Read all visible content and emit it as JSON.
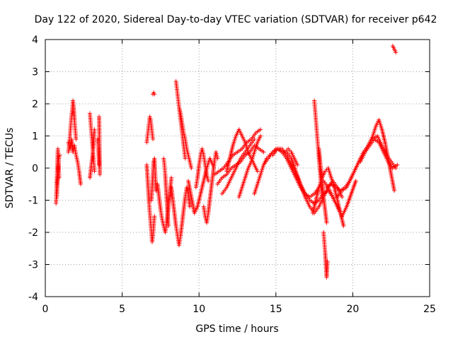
{
  "chart_data": {
    "type": "scatter",
    "title": "Day 122 of 2020, Sidereal Day-to-day VTEC variation (SDTVAR) for receiver p642",
    "xlabel": "GPS time / hours",
    "ylabel": "SDTVAR / TECUs",
    "xlim": [
      0,
      25
    ],
    "ylim": [
      -4,
      4
    ],
    "xticks": [
      0,
      5,
      10,
      15,
      20,
      25
    ],
    "yticks": [
      -4,
      -3,
      -2,
      -1,
      0,
      1,
      2,
      3,
      4
    ],
    "xtick_labels": [
      "0",
      "5",
      "10",
      "15",
      "20",
      "25"
    ],
    "ytick_labels": [
      "-4",
      "-3",
      "-2",
      "-1",
      "0",
      "1",
      "2",
      "3",
      "4"
    ],
    "grid": true,
    "marker": "+",
    "color": "#ff0000",
    "segments": [
      {
        "x": [
          0.7,
          0.72,
          0.74,
          0.76,
          0.78,
          0.8,
          0.82,
          0.85,
          0.88,
          0.9
        ],
        "y": [
          -1.1,
          -0.8,
          -0.5,
          -0.2,
          0.1,
          0.4,
          0.6,
          0.3,
          0.0,
          -0.3
        ]
      },
      {
        "x": [
          0.75,
          0.78,
          0.82,
          0.86,
          0.9,
          0.95
        ],
        "y": [
          -0.9,
          -0.6,
          -0.2,
          0.2,
          0.35,
          0.4
        ]
      },
      {
        "x": [
          1.5,
          1.55,
          1.6,
          1.65,
          1.7,
          1.75,
          1.8,
          1.85,
          1.9,
          1.95,
          2.0
        ],
        "y": [
          0.5,
          0.7,
          1.0,
          1.3,
          1.6,
          1.8,
          2.1,
          1.9,
          1.5,
          1.2,
          0.9
        ]
      },
      {
        "x": [
          1.5,
          1.6,
          1.7,
          1.8,
          1.9,
          2.0,
          2.1,
          2.2,
          2.3
        ],
        "y": [
          0.8,
          0.6,
          0.9,
          0.5,
          0.7,
          0.4,
          0.2,
          -0.1,
          -0.5
        ]
      },
      {
        "x": [
          2.9,
          2.95,
          3.0,
          3.05,
          3.1,
          3.15,
          3.2
        ],
        "y": [
          1.7,
          1.4,
          1.1,
          0.8,
          0.5,
          0.2,
          -0.1
        ]
      },
      {
        "x": [
          2.9,
          3.0,
          3.1,
          3.2
        ],
        "y": [
          -0.3,
          0.1,
          0.5,
          1.2
        ]
      },
      {
        "x": [
          3.4,
          3.45,
          3.5
        ],
        "y": [
          0.9,
          0.6,
          0.1
        ]
      },
      {
        "x": [
          3.5,
          3.55
        ],
        "y": [
          1.6,
          -0.2
        ]
      },
      {
        "x": [
          6.6,
          6.65,
          6.7,
          6.75,
          6.8,
          6.85,
          6.9,
          6.95,
          7.0
        ],
        "y": [
          0.8,
          1.0,
          1.2,
          1.4,
          1.6,
          1.5,
          1.3,
          1.1,
          0.9
        ]
      },
      {
        "x": [
          6.6,
          6.65,
          6.7,
          6.75,
          6.8,
          6.85,
          6.9,
          6.95,
          7.0,
          7.05,
          7.1
        ],
        "y": [
          0.1,
          -0.3,
          -0.7,
          -1.1,
          -1.4,
          -1.7,
          -2.0,
          -2.3,
          -2.1,
          -1.8,
          -1.5
        ]
      },
      {
        "x": [
          6.9,
          6.95,
          7.0,
          7.05,
          7.1,
          7.15,
          7.2
        ],
        "y": [
          -1.0,
          -0.6,
          -0.2,
          0.2,
          0.3,
          -0.2,
          -0.7
        ]
      },
      {
        "x": [
          7.0,
          7.05,
          7.1
        ],
        "y": [
          2.3,
          2.35,
          2.3
        ]
      },
      {
        "x": [
          7.3,
          7.4,
          7.5,
          7.6,
          7.7,
          7.8,
          7.9,
          8.0,
          8.1,
          8.2
        ],
        "y": [
          -0.5,
          -0.9,
          -1.3,
          -1.6,
          -1.8,
          -2.0,
          -1.7,
          -1.3,
          -0.8,
          -0.3
        ]
      },
      {
        "x": [
          7.7,
          7.75,
          7.8,
          7.85,
          7.9,
          7.95,
          8.0
        ],
        "y": [
          0.3,
          0.1,
          -0.2,
          -0.6,
          -1.0,
          -1.4,
          -1.8
        ]
      },
      {
        "x": [
          8.2,
          8.3,
          8.4,
          8.5,
          8.6,
          8.7,
          8.8,
          8.9,
          9.0,
          9.1,
          9.2,
          9.3,
          9.4
        ],
        "y": [
          -0.6,
          -1.0,
          -1.4,
          -1.8,
          -2.1,
          -2.4,
          -2.1,
          -1.7,
          -1.3,
          -0.9,
          -0.6,
          -0.8,
          -1.2
        ]
      },
      {
        "x": [
          8.5,
          8.55,
          8.6,
          8.65,
          8.7,
          8.75,
          8.8,
          8.85,
          8.9,
          8.95,
          9.0,
          9.05,
          9.1
        ],
        "y": [
          2.7,
          2.5,
          2.3,
          2.1,
          1.9,
          1.7,
          1.5,
          1.3,
          1.1,
          0.9,
          0.7,
          0.5,
          0.3
        ]
      },
      {
        "x": [
          8.7,
          8.8,
          8.9,
          9.0,
          9.1,
          9.2,
          9.3,
          9.4,
          9.5
        ],
        "y": [
          1.9,
          1.7,
          1.4,
          1.1,
          0.9,
          0.6,
          0.4,
          0.2,
          0.0
        ]
      },
      {
        "x": [
          9.3,
          9.5,
          9.7,
          9.9,
          10.1,
          10.3,
          10.5,
          10.7,
          10.9
        ],
        "y": [
          -0.4,
          -0.9,
          -1.4,
          -1.2,
          -0.8,
          -0.4,
          0.0,
          0.3,
          0.1
        ]
      },
      {
        "x": [
          9.8,
          9.9,
          10.0,
          10.1,
          10.2,
          10.3,
          10.4,
          10.5,
          10.6
        ],
        "y": [
          -0.6,
          -0.3,
          0.1,
          0.4,
          0.6,
          0.4,
          0.1,
          -0.2,
          -0.4
        ]
      },
      {
        "x": [
          10.3,
          10.4,
          10.5,
          10.6,
          10.7,
          10.8,
          10.9,
          11.0,
          11.1,
          11.2
        ],
        "y": [
          -1.2,
          -1.5,
          -1.7,
          -1.4,
          -1.0,
          -0.6,
          -0.2,
          0.2,
          0.5,
          0.3
        ]
      },
      {
        "x": [
          11.0,
          11.3,
          11.6,
          11.9,
          12.2,
          12.5,
          12.8,
          13.1,
          13.4,
          13.7,
          14.0
        ],
        "y": [
          -0.2,
          -0.1,
          0.0,
          0.2,
          0.4,
          0.5,
          0.6,
          0.8,
          0.9,
          1.1,
          1.2
        ]
      },
      {
        "x": [
          11.2,
          11.5,
          11.8,
          12.1,
          12.4,
          12.7,
          13.0,
          13.3,
          13.6,
          13.9,
          14.2
        ],
        "y": [
          -0.5,
          -0.3,
          -0.2,
          0.0,
          0.1,
          0.2,
          0.4,
          0.5,
          0.7,
          0.6,
          0.5
        ]
      },
      {
        "x": [
          11.5,
          11.8,
          12.1,
          12.4,
          12.7,
          13.0,
          13.3,
          13.6
        ],
        "y": [
          -0.8,
          -0.6,
          -0.3,
          0.0,
          0.3,
          0.5,
          0.7,
          0.9
        ]
      },
      {
        "x": [
          11.8,
          12.0,
          12.2,
          12.4,
          12.6,
          12.8,
          13.0,
          13.2,
          13.4,
          13.6,
          13.8
        ],
        "y": [
          -0.1,
          0.3,
          0.7,
          1.0,
          1.2,
          1.0,
          0.8,
          0.5,
          0.3,
          0.1,
          -0.1
        ]
      },
      {
        "x": [
          12.6,
          12.8,
          13.0,
          13.2,
          13.4,
          13.6,
          13.8,
          14.0
        ],
        "y": [
          -0.9,
          -0.6,
          -0.3,
          0.0,
          0.2,
          0.5,
          0.8,
          1.0
        ]
      },
      {
        "x": [
          13.6,
          13.8,
          14.0,
          14.2,
          14.4,
          14.6,
          14.8,
          15.0,
          15.2,
          15.4,
          15.6,
          15.8,
          16.0,
          16.2,
          16.4
        ],
        "y": [
          -0.8,
          -0.5,
          -0.2,
          0.1,
          0.3,
          0.4,
          0.5,
          0.6,
          0.6,
          0.5,
          0.5,
          0.6,
          0.5,
          0.3,
          0.1
        ]
      },
      {
        "x": [
          14.2,
          14.5,
          14.8,
          15.1,
          15.4,
          15.7,
          16.0,
          16.3,
          16.6,
          16.9,
          17.2,
          17.5,
          17.8,
          18.1,
          18.4,
          18.7,
          19.0,
          19.3
        ],
        "y": [
          0.1,
          0.3,
          0.5,
          0.6,
          0.5,
          0.3,
          0.0,
          -0.3,
          -0.6,
          -0.8,
          -0.9,
          -0.8,
          -0.6,
          -0.4,
          -0.6,
          -0.9,
          -1.2,
          -1.5
        ]
      },
      {
        "x": [
          14.8,
          15.1,
          15.4,
          15.7,
          16.0,
          16.3,
          16.6,
          16.9,
          17.2,
          17.5,
          17.8,
          18.1,
          18.4,
          18.7,
          19.0,
          19.3,
          19.6,
          19.9,
          20.2
        ],
        "y": [
          0.4,
          0.6,
          0.6,
          0.4,
          0.1,
          -0.2,
          -0.5,
          -0.8,
          -1.0,
          -1.1,
          -1.0,
          -0.8,
          -0.7,
          -0.9,
          -1.2,
          -1.5,
          -1.2,
          -0.8,
          -0.4
        ]
      },
      {
        "x": [
          15.4,
          15.7,
          16.0,
          16.3,
          16.6,
          16.9,
          17.2,
          17.5,
          17.8,
          18.1,
          18.4,
          18.7,
          19.0,
          19.3
        ],
        "y": [
          0.5,
          0.5,
          0.3,
          -0.1,
          -0.5,
          -0.9,
          -1.2,
          -1.4,
          -1.2,
          -0.9,
          -0.6,
          -0.4,
          -0.6,
          -0.9
        ]
      },
      {
        "x": [
          17.4,
          17.6,
          17.8,
          18.0,
          18.2,
          18.4,
          18.6,
          18.8,
          19.0,
          19.2,
          19.4
        ],
        "y": [
          -1.4,
          -1.0,
          -0.6,
          -0.3,
          -0.1,
          0.0,
          -0.3,
          -0.6,
          -1.0,
          -1.4,
          -1.8
        ]
      },
      {
        "x": [
          17.5,
          17.55,
          17.6,
          17.65,
          17.7,
          17.75,
          17.8,
          17.85,
          17.9,
          17.95,
          18.0
        ],
        "y": [
          2.1,
          1.8,
          1.5,
          1.2,
          0.9,
          0.6,
          0.3,
          0.0,
          -0.3,
          -0.6,
          -0.9
        ]
      },
      {
        "x": [
          17.8,
          17.9,
          18.0,
          18.1,
          18.2,
          18.3
        ],
        "y": [
          0.6,
          0.1,
          -0.4,
          -0.9,
          -1.3,
          -1.7
        ]
      },
      {
        "x": [
          18.1,
          18.15,
          18.2,
          18.25,
          18.3,
          18.35
        ],
        "y": [
          -2.0,
          -2.3,
          -2.6,
          -3.0,
          -3.4,
          -2.9
        ]
      },
      {
        "x": [
          18.3,
          18.6,
          18.9,
          19.2,
          19.5,
          19.8,
          20.1,
          20.4,
          20.7,
          21.0,
          21.3,
          21.6,
          21.9,
          22.2,
          22.5,
          22.8
        ],
        "y": [
          -0.6,
          -0.5,
          -0.6,
          -0.7,
          -0.6,
          -0.4,
          -0.1,
          0.2,
          0.5,
          0.7,
          0.9,
          1.0,
          0.7,
          0.4,
          0.2,
          0.0
        ]
      },
      {
        "x": [
          19.0,
          19.3,
          19.6,
          19.9,
          20.2,
          20.5,
          20.8,
          21.1,
          21.4,
          21.7,
          22.0,
          22.3,
          22.6,
          22.9
        ],
        "y": [
          -0.9,
          -0.7,
          -0.6,
          -0.3,
          0.0,
          0.3,
          0.5,
          0.7,
          0.9,
          0.8,
          0.5,
          0.2,
          0.0,
          0.1
        ]
      },
      {
        "x": [
          20.5,
          20.7,
          20.9,
          21.1,
          21.3,
          21.5,
          21.7,
          21.9,
          22.1,
          22.3,
          22.5,
          22.7
        ],
        "y": [
          0.2,
          0.4,
          0.6,
          0.8,
          1.0,
          1.3,
          1.5,
          1.2,
          0.8,
          0.3,
          -0.2,
          -0.7
        ]
      },
      {
        "x": [
          22.6,
          22.65,
          22.7,
          22.75,
          22.8
        ],
        "y": [
          3.8,
          3.75,
          3.7,
          3.65,
          3.6
        ]
      }
    ]
  }
}
